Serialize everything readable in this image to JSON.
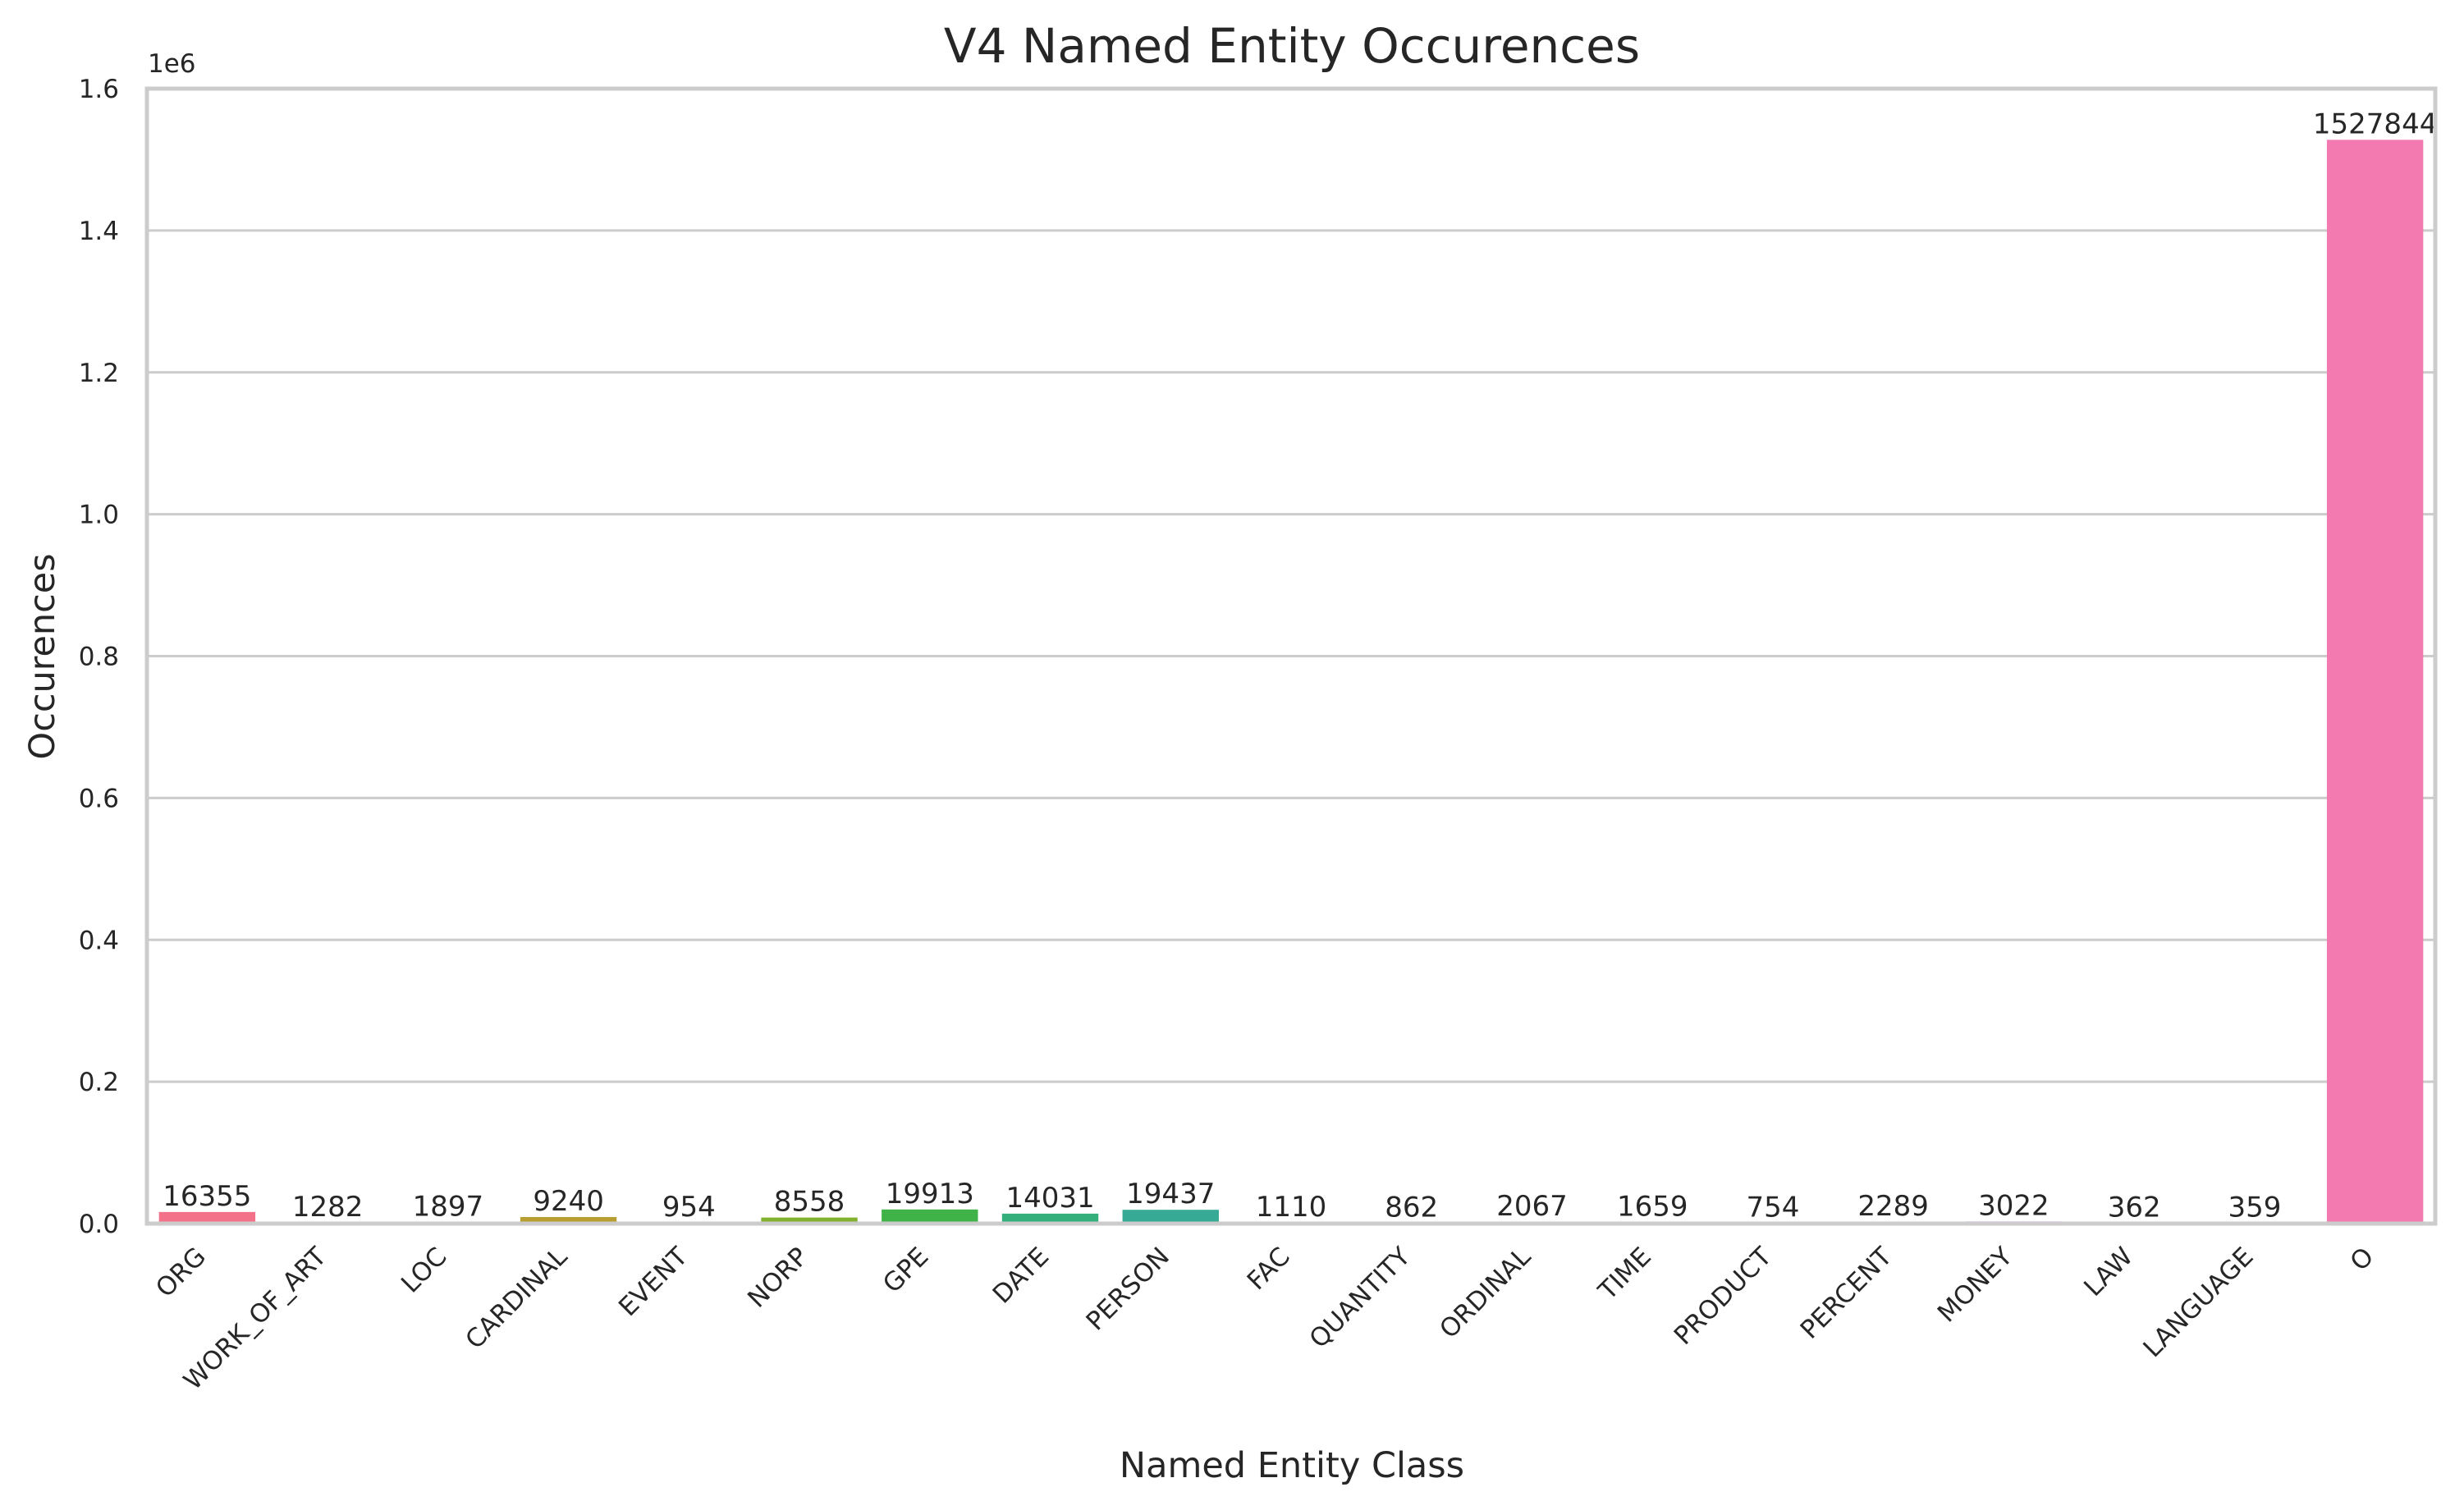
{
  "chart_data": {
    "type": "bar",
    "title": "V4 Named Entity Occurences",
    "xlabel": "Named Entity Class",
    "ylabel": "Occurences",
    "y_scale_label": "1e6",
    "ylim": [
      0,
      1600000
    ],
    "yticks": [
      0,
      200000,
      400000,
      600000,
      800000,
      1000000,
      1200000,
      1400000,
      1600000
    ],
    "ytick_labels": [
      "0.0",
      "0.2",
      "0.4",
      "0.6",
      "0.8",
      "1.0",
      "1.2",
      "1.4",
      "1.6"
    ],
    "grid": "horizontal",
    "categories": [
      "ORG",
      "WORK_OF_ART",
      "LOC",
      "CARDINAL",
      "EVENT",
      "NORP",
      "GPE",
      "DATE",
      "PERSON",
      "FAC",
      "QUANTITY",
      "ORDINAL",
      "TIME",
      "PRODUCT",
      "PERCENT",
      "MONEY",
      "LAW",
      "LANGUAGE",
      "O"
    ],
    "values": [
      16355,
      1282,
      1897,
      9240,
      954,
      8558,
      19913,
      14031,
      19437,
      1110,
      862,
      2067,
      1659,
      754,
      2289,
      3022,
      362,
      359,
      1527844
    ],
    "colors": [
      "#f37289",
      "#e87f48",
      "#d08f31",
      "#b89e30",
      "#a1a830",
      "#82b130",
      "#3fb348",
      "#33af7b",
      "#36aa95",
      "#37a7a4",
      "#39a3b2",
      "#3c9ec3",
      "#4298d9",
      "#7e8cf2",
      "#a882f4",
      "#cf73f4",
      "#f063e8",
      "#f269c9",
      "#f37ab0"
    ]
  }
}
